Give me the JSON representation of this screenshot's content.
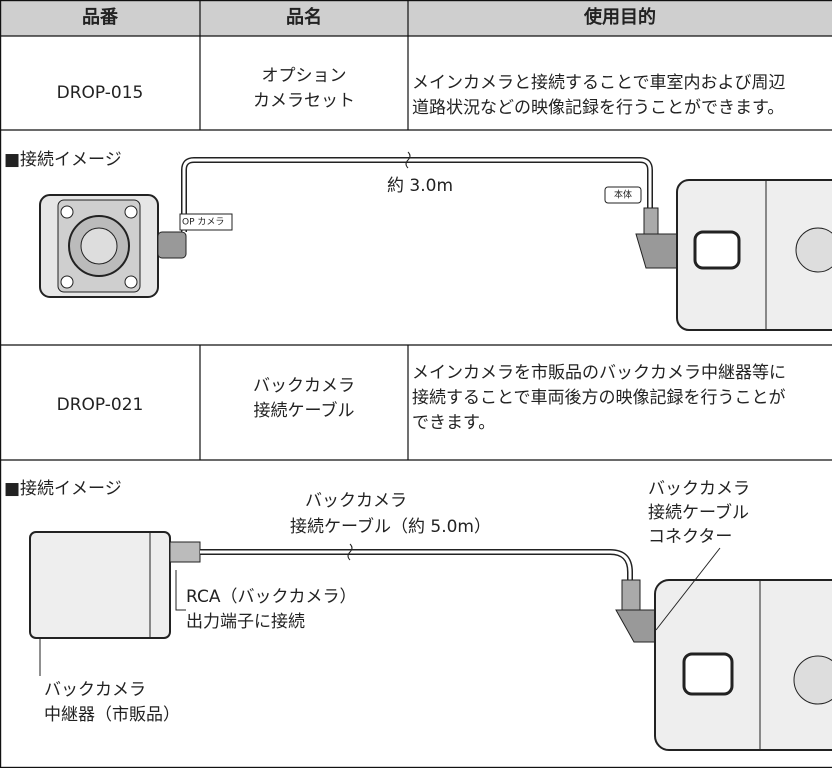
{
  "table": {
    "headers": [
      "品番",
      "品名",
      "使用目的"
    ],
    "rows": [
      {
        "part_number": "DROP-015",
        "name": [
          "オプション",
          "カメラセット"
        ],
        "purpose": [
          "メインカメラと接続することで車室内および周辺",
          "道路状況などの映像記録を行うことができます。"
        ]
      },
      {
        "part_number": "DROP-021",
        "name": [
          "バックカメラ",
          "接続ケーブル"
        ],
        "purpose": [
          "メインカメラを市販品のバックカメラ中継器等に",
          "接続することで車両後方の映像記録を行うことが",
          "できます。"
        ]
      }
    ]
  },
  "images": [
    {
      "title": "■接続イメージ",
      "cable_length": "約 3.0m",
      "camera_tag": "OP カメラ",
      "unit_tag": "本体"
    },
    {
      "title": "■接続イメージ",
      "cable_label": [
        "バックカメラ",
        "接続ケーブル（約 5.0m）"
      ],
      "connector_label": [
        "バックカメラ",
        "接続ケーブル",
        "コネクター"
      ],
      "rca_label": [
        "RCA（バックカメラ）",
        "出力端子に接続"
      ],
      "relay_label": [
        "バックカメラ",
        "中継器（市販品）"
      ]
    }
  ]
}
